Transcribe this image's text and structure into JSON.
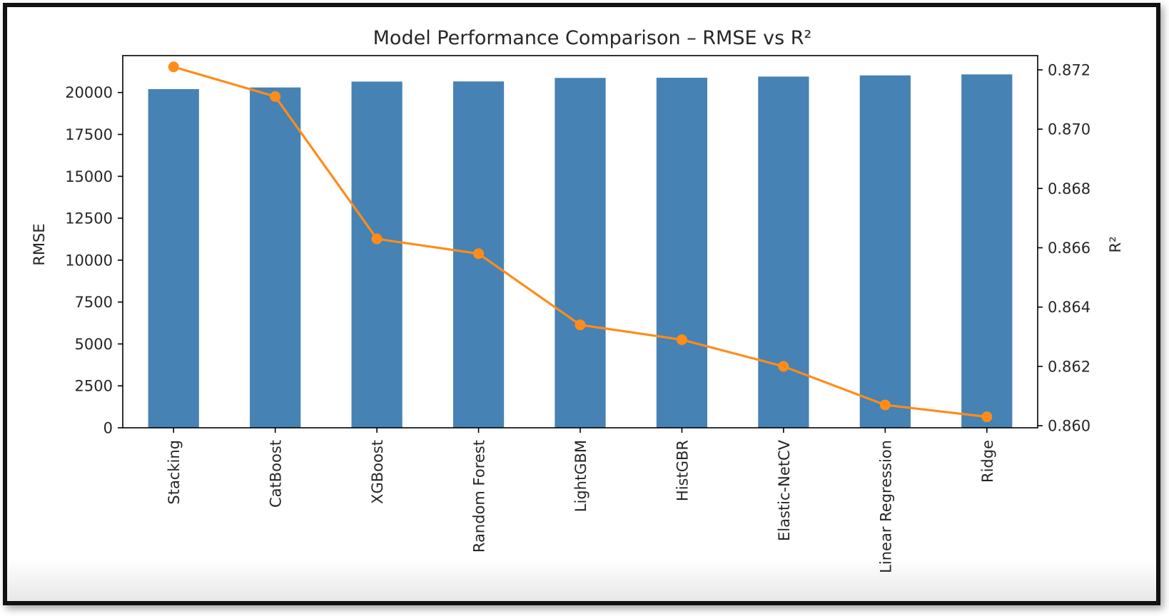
{
  "chart_data": {
    "type": "bar+line",
    "title": "Model Performance Comparison – RMSE vs R²",
    "categories": [
      "Stacking",
      "CatBoost",
      "XGBoost",
      "Random Forest",
      "LightGBM",
      "HistGBR",
      "Elastic-NetCV",
      "Linear Regression",
      "Ridge"
    ],
    "series": [
      {
        "name": "RMSE",
        "type": "bar",
        "axis": "left",
        "color": "#4682b4",
        "values": [
          20200,
          20300,
          20650,
          20660,
          20870,
          20880,
          20950,
          21020,
          21080
        ]
      },
      {
        "name": "R²",
        "type": "line",
        "axis": "right",
        "color": "#ff8c1a",
        "values": [
          0.8721,
          0.8711,
          0.8663,
          0.8658,
          0.8634,
          0.8629,
          0.862,
          0.8607,
          0.8603
        ]
      }
    ],
    "ylabel": "RMSE",
    "ylim": [
      0,
      22200
    ],
    "yticks": [
      0,
      2500,
      5000,
      7500,
      10000,
      12500,
      15000,
      17500,
      20000
    ],
    "y2label": "R²",
    "y2lim": [
      0.85993,
      0.87248
    ],
    "y2ticks": [
      "0.860",
      "0.862",
      "0.864",
      "0.866",
      "0.868",
      "0.870",
      "0.872"
    ],
    "grid": false,
    "legend": "none"
  }
}
